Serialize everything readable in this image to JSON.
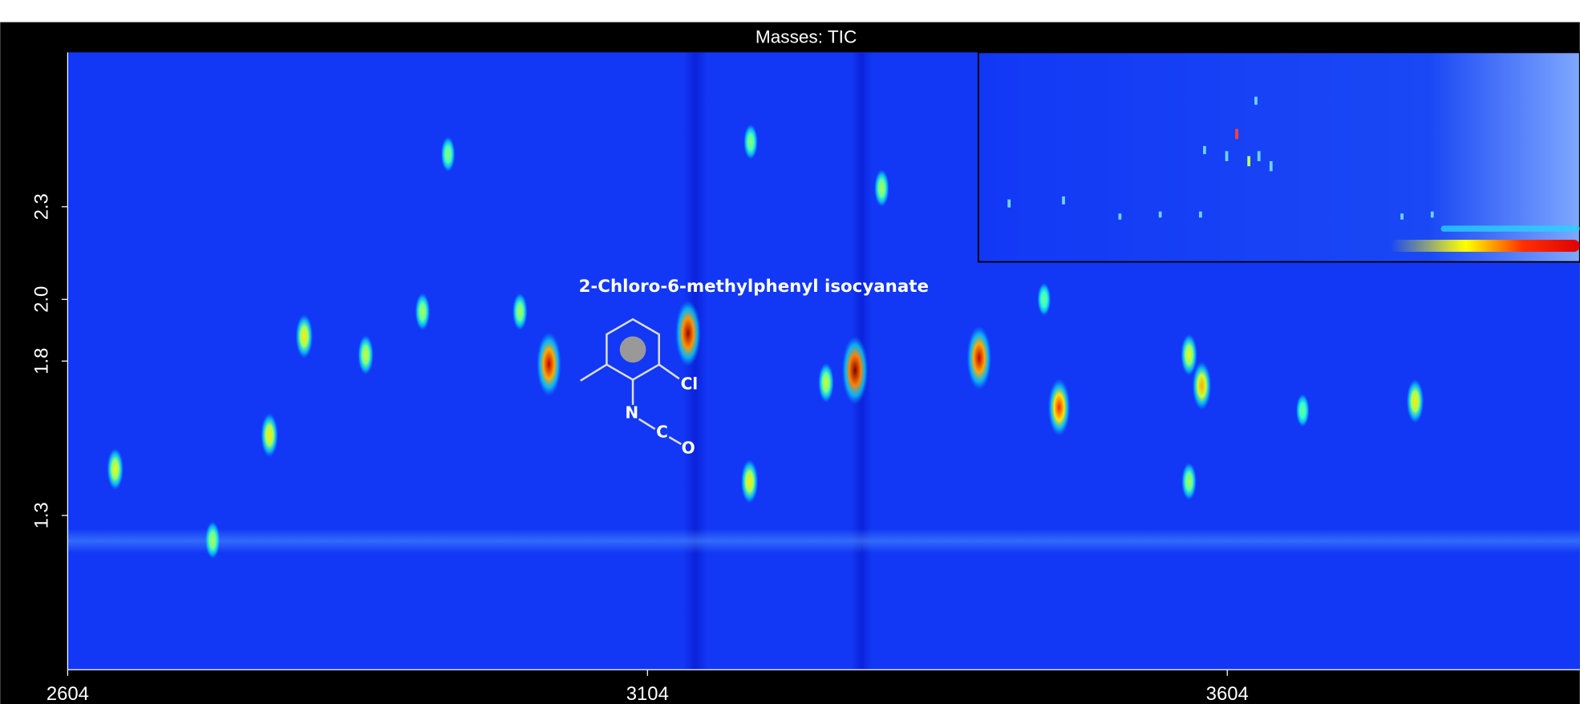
{
  "chart_data": {
    "type": "scatter",
    "title": "Masses:  TIC",
    "annotation": "2-Chloro-6-methylphenyl isocyanate",
    "structure_labels": [
      "Cl",
      "N",
      "C",
      "O"
    ],
    "x": [
      2645,
      2729,
      2778,
      2808,
      2861,
      2910,
      2932,
      2994,
      3019,
      3139,
      3192,
      3193,
      3258,
      3283,
      3306,
      3390,
      3459,
      3571,
      3582,
      3571,
      3766,
      3669,
      3446
    ],
    "y": [
      1.45,
      1.22,
      1.56,
      1.88,
      1.82,
      1.96,
      2.47,
      1.96,
      1.79,
      1.89,
      1.41,
      2.51,
      1.73,
      1.77,
      2.36,
      1.81,
      1.65,
      1.82,
      1.72,
      1.41,
      1.67,
      1.64,
      2.0
    ],
    "z": [
      40,
      30,
      45,
      45,
      35,
      30,
      25,
      30,
      90,
      95,
      45,
      25,
      35,
      100,
      30,
      90,
      75,
      40,
      55,
      30,
      45,
      20,
      20
    ],
    "zlim": [
      0,
      100
    ],
    "xlim": [
      2604,
      3908
    ],
    "ylim": [
      0.8,
      2.8
    ],
    "xticks": [
      2604,
      3104,
      3604
    ],
    "yticks": [
      1.3,
      1.8,
      {
        "value": 2,
        "label": "2.0"
      },
      2.3
    ],
    "background_color": "#1238f5"
  }
}
